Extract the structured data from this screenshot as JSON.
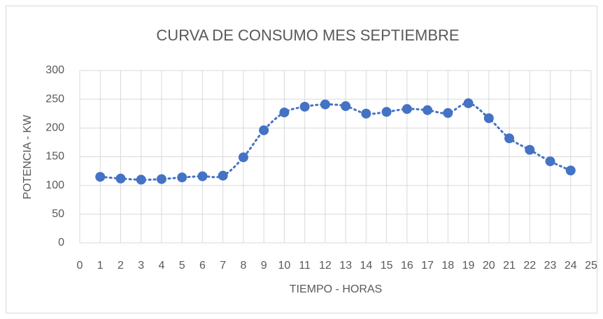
{
  "chart_data": {
    "type": "scatter",
    "title": "CURVA DE CONSUMO MES SEPTIEMBRE",
    "x_label": "TIEMPO - HORAS",
    "y_label": "POTENCIA - KW",
    "x": [
      1,
      2,
      3,
      4,
      5,
      6,
      7,
      8,
      9,
      10,
      11,
      12,
      13,
      14,
      15,
      16,
      17,
      18,
      19,
      20,
      21,
      22,
      23,
      24
    ],
    "values": [
      115,
      112,
      110,
      111,
      114,
      116,
      117,
      149,
      196,
      227,
      237,
      241,
      238,
      225,
      228,
      233,
      231,
      226,
      243,
      217,
      182,
      162,
      142,
      126
    ],
    "color": "#4472c4",
    "trendline": "dotted",
    "xlim": [
      0,
      25
    ],
    "xticks": [
      0,
      1,
      2,
      3,
      4,
      5,
      6,
      7,
      8,
      9,
      10,
      11,
      12,
      13,
      14,
      15,
      16,
      17,
      18,
      19,
      20,
      21,
      22,
      23,
      24,
      25
    ],
    "ylim": [
      0,
      300
    ],
    "yticks": [
      0,
      50,
      100,
      150,
      200,
      250,
      300
    ],
    "grid": true
  }
}
